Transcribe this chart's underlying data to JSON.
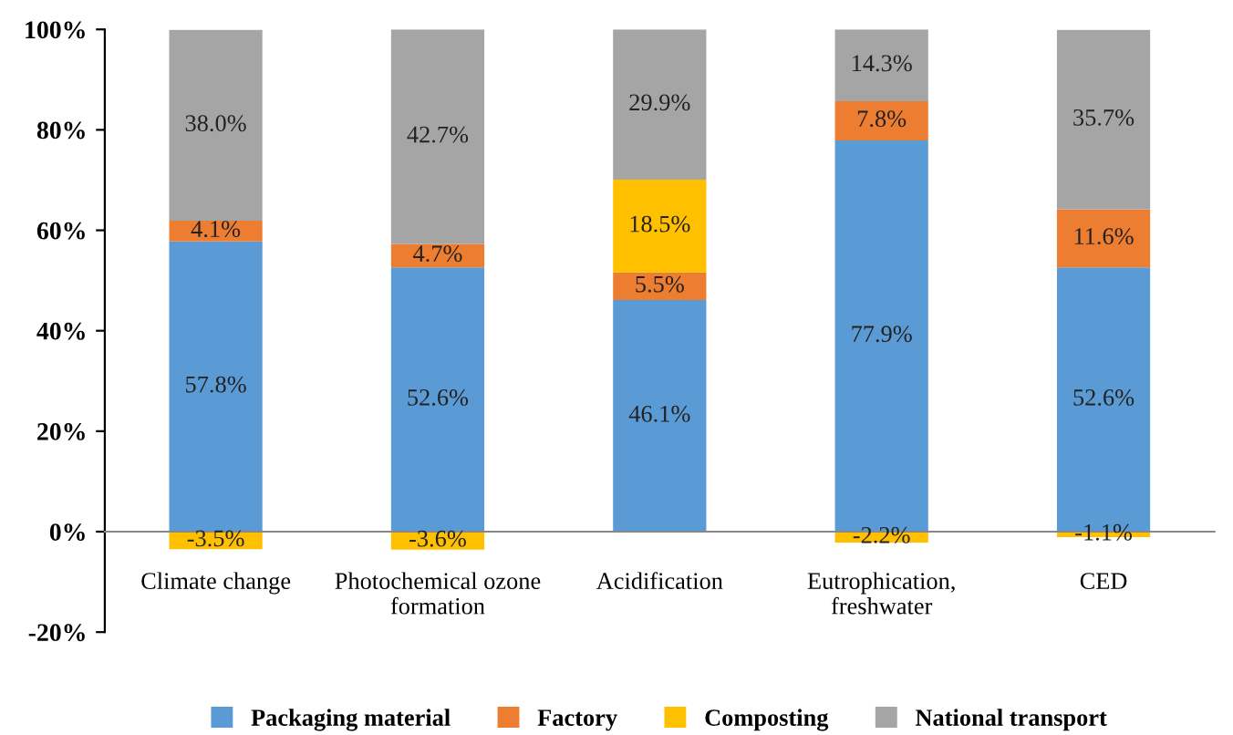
{
  "chart_data": {
    "type": "bar",
    "stacked": true,
    "categories": [
      "Climate change",
      "Photochemical ozone\nformation",
      "Acidification",
      "Eutrophication,\nfreshwater",
      "CED"
    ],
    "series": [
      {
        "name": "Packaging material",
        "color": "#5b9bd5",
        "values": [
          57.8,
          52.6,
          46.1,
          77.9,
          52.6
        ],
        "value_labels": [
          "57.8%",
          "52.6%",
          "46.1%",
          "77.9%",
          "52.6%"
        ]
      },
      {
        "name": "Factory",
        "color": "#ed7d31",
        "values": [
          4.1,
          4.7,
          5.5,
          7.8,
          11.6
        ],
        "value_labels": [
          "4.1%",
          "4.7%",
          "5.5%",
          "7.8%",
          "11.6%"
        ]
      },
      {
        "name": "Composting",
        "color": "#ffc000",
        "values": [
          -3.5,
          -3.6,
          18.5,
          -2.2,
          -1.1
        ],
        "value_labels": [
          "-3.5%",
          "-3.6%",
          "18.5%",
          "-2.2%",
          "-1.1%"
        ]
      },
      {
        "name": "National transport",
        "color": "#a5a5a5",
        "values": [
          38.0,
          42.7,
          29.9,
          14.3,
          35.7
        ],
        "value_labels": [
          "38.0%",
          "42.7%",
          "29.9%",
          "14.3%",
          "35.7%"
        ]
      }
    ],
    "ylim": [
      -20,
      100
    ],
    "yticks": [
      {
        "value": -20,
        "label": "-20%"
      },
      {
        "value": 0,
        "label": "0%"
      },
      {
        "value": 20,
        "label": "20%"
      },
      {
        "value": 40,
        "label": "40%"
      },
      {
        "value": 60,
        "label": "60%"
      },
      {
        "value": 80,
        "label": "80%"
      },
      {
        "value": 100,
        "label": "100%"
      }
    ],
    "grid": false,
    "legend": "bottom"
  }
}
